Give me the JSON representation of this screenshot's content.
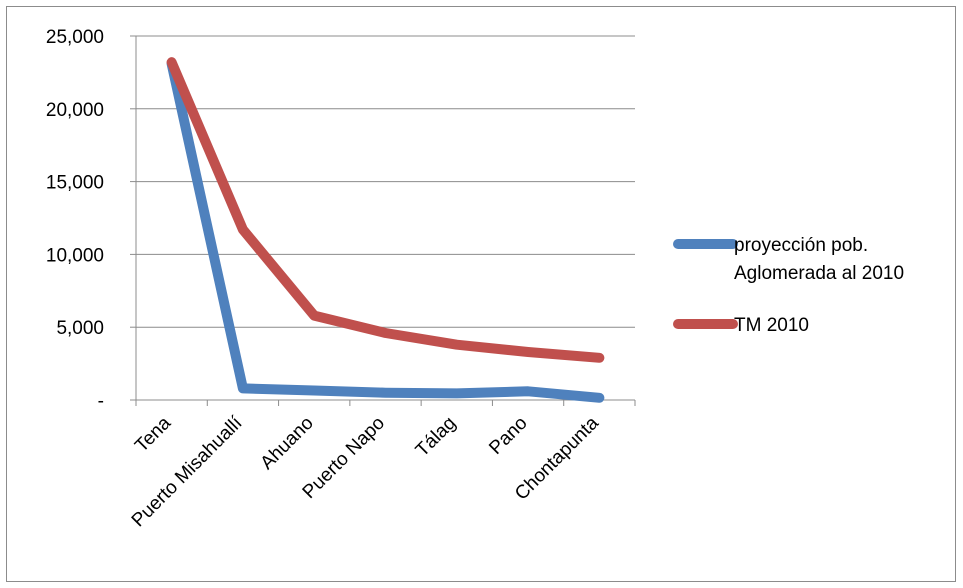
{
  "chart_data": {
    "type": "line",
    "categories": [
      "Tena",
      "Puerto Misahuallí",
      "Ahuano",
      "Puerto Napo",
      "Tálag",
      "Pano",
      "Chontapunta"
    ],
    "series": [
      {
        "name": "proyección pob. Aglomerada al 2010",
        "name_lines": [
          "proyección pob.",
          "Aglomerada al 2010"
        ],
        "color": "#4f81bd",
        "values": [
          23100,
          800,
          650,
          500,
          450,
          600,
          150
        ]
      },
      {
        "name": "TM 2010",
        "name_lines": [
          "TM 2010"
        ],
        "color": "#c0504d",
        "values": [
          23200,
          11700,
          5800,
          4600,
          3800,
          3300,
          2900
        ]
      }
    ],
    "y_ticks": [
      0,
      5000,
      10000,
      15000,
      20000,
      25000
    ],
    "y_tick_labels": [
      "-",
      "5,000",
      "10,000",
      "15,000",
      "20,000",
      "25,000"
    ],
    "ylim": [
      0,
      25000
    ],
    "grid": true,
    "legend_position": "right",
    "title": "",
    "xlabel": "",
    "ylabel": ""
  }
}
